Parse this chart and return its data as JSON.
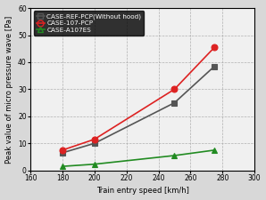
{
  "series": [
    {
      "label": "CASE-REF-PCP(Without hood)",
      "x": [
        180,
        200,
        250,
        275
      ],
      "y": [
        6.5,
        10.0,
        25.0,
        38.5
      ],
      "color": "#555555",
      "marker": "s",
      "markersize": 5,
      "linewidth": 1.2
    },
    {
      "label": "CASE-107-PCP",
      "x": [
        180,
        200,
        250,
        275
      ],
      "y": [
        7.5,
        11.5,
        30.0,
        45.5
      ],
      "color": "#dd2222",
      "marker": "o",
      "markersize": 5,
      "linewidth": 1.2
    },
    {
      "label": "CASE-A107ES",
      "x": [
        180,
        200,
        250,
        275
      ],
      "y": [
        1.5,
        2.3,
        5.5,
        7.5
      ],
      "color": "#228B22",
      "marker": "^",
      "markersize": 5,
      "linewidth": 1.2
    }
  ],
  "xlabel": "Train entry speed [km/h]",
  "ylabel": "Peak value of micro pressure wave [Pa]",
  "xlim": [
    160,
    300
  ],
  "ylim": [
    0,
    60
  ],
  "xticks": [
    160,
    180,
    200,
    220,
    240,
    260,
    280,
    300
  ],
  "yticks": [
    0,
    10,
    20,
    30,
    40,
    50,
    60
  ],
  "grid": true,
  "background_color": "#f0f0f0",
  "axis_fontsize": 6.0,
  "legend_fontsize": 5.2,
  "tick_fontsize": 5.5
}
